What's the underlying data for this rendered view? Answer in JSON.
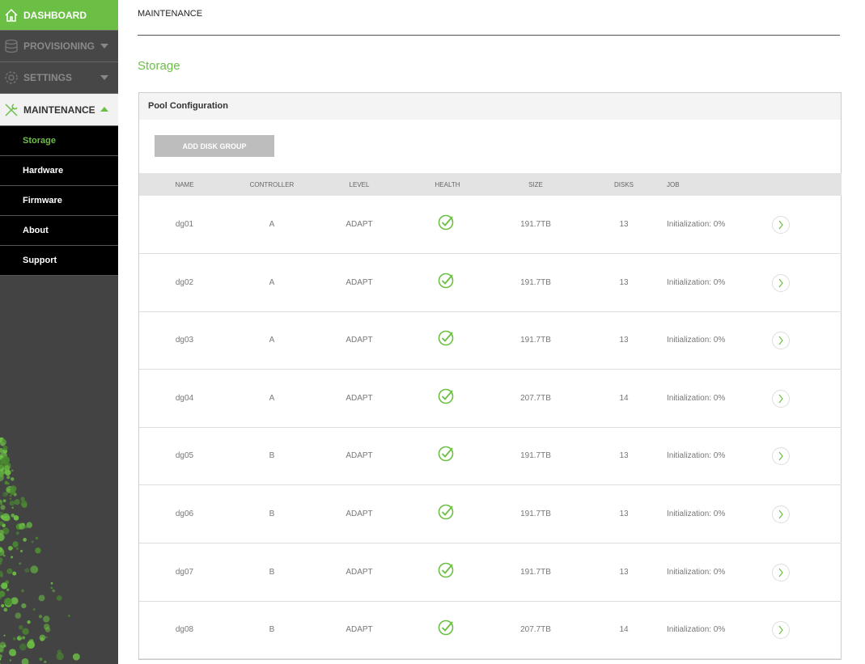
{
  "sidebar": {
    "nav": [
      {
        "label": "DASHBOARD",
        "icon": "home-icon"
      },
      {
        "label": "PROVISIONING",
        "icon": "database-icon"
      },
      {
        "label": "SETTINGS",
        "icon": "gear-icon"
      },
      {
        "label": "MAINTENANCE",
        "icon": "tools-icon"
      }
    ],
    "subitems": [
      "Storage",
      "Hardware",
      "Firmware",
      "About",
      "Support"
    ],
    "active_subitem": "Storage"
  },
  "breadcrumb": "MAINTENANCE",
  "page_title": "Storage",
  "panel": {
    "title": "Pool Configuration",
    "add_button": "ADD DISK GROUP",
    "columns": [
      "NAME",
      "CONTROLLER",
      "LEVEL",
      "HEALTH",
      "SIZE",
      "DISKS",
      "JOB"
    ],
    "rows": [
      {
        "name": "dg01",
        "controller": "A",
        "level": "ADAPT",
        "health": "ok",
        "size": "191.7TB",
        "disks": "13",
        "job": "Initialization: 0%"
      },
      {
        "name": "dg02",
        "controller": "A",
        "level": "ADAPT",
        "health": "ok",
        "size": "191.7TB",
        "disks": "13",
        "job": "Initialization: 0%"
      },
      {
        "name": "dg03",
        "controller": "A",
        "level": "ADAPT",
        "health": "ok",
        "size": "191.7TB",
        "disks": "13",
        "job": "Initialization: 0%"
      },
      {
        "name": "dg04",
        "controller": "A",
        "level": "ADAPT",
        "health": "ok",
        "size": "207.7TB",
        "disks": "14",
        "job": "Initialization: 0%"
      },
      {
        "name": "dg05",
        "controller": "B",
        "level": "ADAPT",
        "health": "ok",
        "size": "191.7TB",
        "disks": "13",
        "job": "Initialization: 0%"
      },
      {
        "name": "dg06",
        "controller": "B",
        "level": "ADAPT",
        "health": "ok",
        "size": "191.7TB",
        "disks": "13",
        "job": "Initialization: 0%"
      },
      {
        "name": "dg07",
        "controller": "B",
        "level": "ADAPT",
        "health": "ok",
        "size": "191.7TB",
        "disks": "13",
        "job": "Initialization: 0%"
      },
      {
        "name": "dg08",
        "controller": "B",
        "level": "ADAPT",
        "health": "ok",
        "size": "207.7TB",
        "disks": "14",
        "job": "Initialization: 0%"
      }
    ]
  },
  "colors": {
    "accent": "#6cbf45",
    "sidebar": "#434343"
  }
}
